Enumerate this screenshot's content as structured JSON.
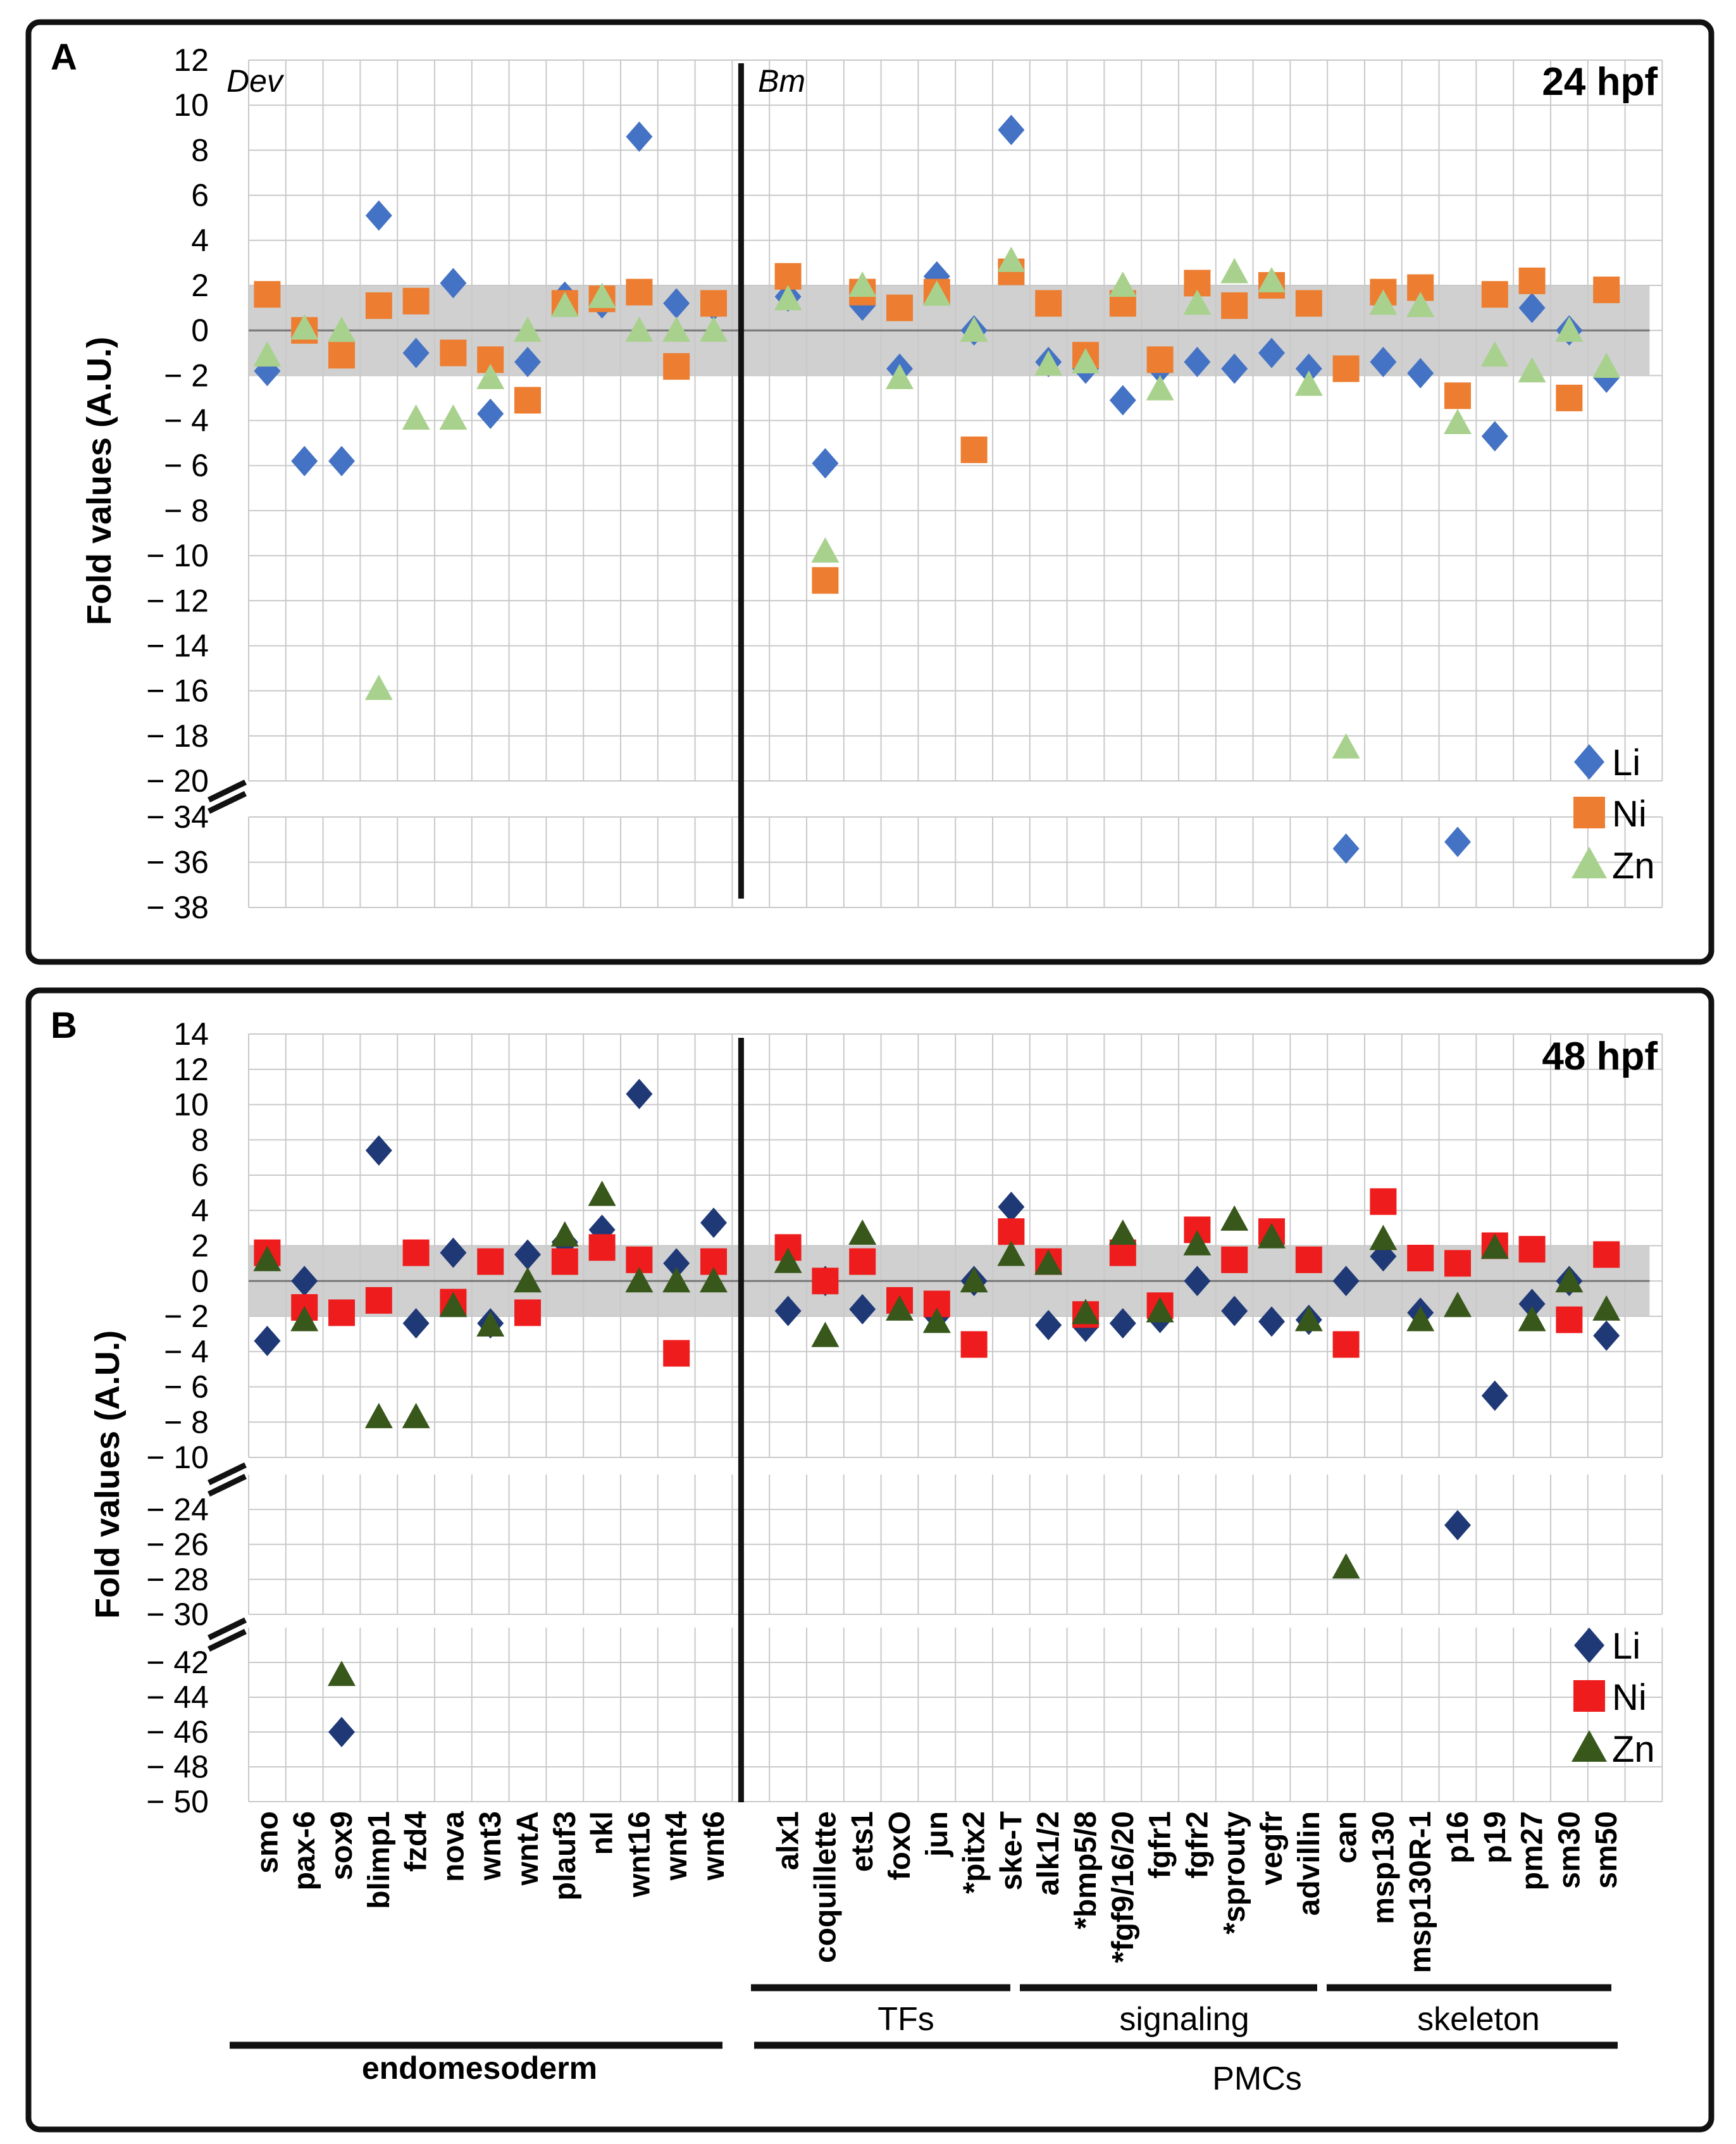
{
  "chart_data": [
    {
      "type": "scatter",
      "panel": "A",
      "title": "24 hpf",
      "ylabel": "Fold values (A.U.)",
      "section_labels": [
        "Dev",
        "Bm"
      ],
      "categories": [
        "smo",
        "pax-6",
        "sox9",
        "blimp1",
        "fzd4",
        "nova",
        "wnt3",
        "wntA",
        "plauf3",
        "nkl",
        "wnt16",
        "wnt4",
        "wnt6",
        "alx1",
        "coquillette",
        "ets1",
        "foxO",
        "jun",
        "*pitx2",
        "ske-T",
        "alk1/2",
        "*bmp5/8",
        "*fgf9/16/20",
        "fgfr1",
        "fgfr2",
        "*sprouty",
        "vegfr",
        "advillin",
        "can",
        "msp130",
        "msp130R-1",
        "p16",
        "p19",
        "pm27",
        "sm30",
        "sm50"
      ],
      "ytick_labels": [
        "12",
        "10",
        "8",
        "6",
        "4",
        "2",
        "0",
        "− 2",
        "− 4",
        "− 6",
        "− 8",
        "− 10",
        "− 12",
        "− 14",
        "− 16",
        "− 18",
        "− 20",
        "− 34",
        "− 36",
        "− 38"
      ],
      "ylim_upper": [
        -20,
        12
      ],
      "ylim_lower": [
        -38,
        -34
      ],
      "threshold_band": [
        -2,
        2
      ],
      "series": [
        {
          "name": "Li",
          "color": "#4472C4",
          "marker": "diamond",
          "values": [
            -1.8,
            -5.8,
            -5.8,
            5.1,
            -1,
            2.1,
            -3.7,
            -1.4,
            1.5,
            1.2,
            8.6,
            1.2,
            1.1,
            1.5,
            -5.9,
            1.1,
            -1.7,
            2.4,
            0,
            8.9,
            -1.4,
            -1.7,
            -3.1,
            -1.7,
            -1.4,
            -1.7,
            -1.0,
            -1.7,
            -35.4,
            -1.4,
            -1.9,
            -35.1,
            -4.7,
            1,
            0,
            -2.1
          ]
        },
        {
          "name": "Ni",
          "color": "#ED7D31",
          "marker": "square",
          "values": [
            1.6,
            0,
            -1.1,
            1.1,
            1.3,
            -1,
            -1.3,
            -3.1,
            1.2,
            1.4,
            1.7,
            -1.6,
            1.2,
            2.4,
            -11.1,
            1.7,
            1,
            1.7,
            -5.3,
            2.6,
            1.2,
            -1.1,
            1.2,
            -1.3,
            2.1,
            1.1,
            2,
            1.2,
            -1.7,
            1.7,
            1.9,
            -2.9,
            1.6,
            2.2,
            -3,
            1.8
          ]
        },
        {
          "name": "Zn",
          "color": "#A9D18E",
          "marker": "triangle",
          "values": [
            -1.1,
            0.1,
            0,
            -15.9,
            -3.9,
            -3.9,
            -2.1,
            0,
            1.1,
            1.5,
            0,
            0,
            0,
            1.4,
            -9.8,
            2,
            -2.1,
            1.6,
            0,
            3.1,
            -1.5,
            -1.4,
            2,
            -2.6,
            1.2,
            2.6,
            2.2,
            -2.4,
            -18.5,
            1.2,
            1.1,
            -4.1,
            -1.1,
            -1.8,
            0,
            -1.6
          ]
        }
      ]
    },
    {
      "type": "scatter",
      "panel": "B",
      "title": "48 hpf",
      "ylabel": "Fold values (A.U.)",
      "categories": [
        "smo",
        "pax-6",
        "sox9",
        "blimp1",
        "fzd4",
        "nova",
        "wnt3",
        "wntA",
        "plauf3",
        "nkl",
        "wnt16",
        "wnt4",
        "wnt6",
        "alx1",
        "coquillette",
        "ets1",
        "foxO",
        "jun",
        "*pitx2",
        "ske-T",
        "alk1/2",
        "*bmp5/8",
        "*fgf9/16/20",
        "fgfr1",
        "fgfr2",
        "*sprouty",
        "vegfr",
        "advillin",
        "can",
        "msp130",
        "msp130R-1",
        "p16",
        "p19",
        "pm27",
        "sm30",
        "sm50"
      ],
      "ytick_labels_upper": [
        "14",
        "12",
        "10",
        "8",
        "6",
        "4",
        "2",
        "0",
        "− 2",
        "− 4",
        "− 6",
        "− 8",
        "− 10"
      ],
      "ytick_labels_middle": [
        "− 24",
        "− 26",
        "− 28",
        "− 30"
      ],
      "ytick_labels_lower": [
        "− 42",
        "− 44",
        "− 46",
        "− 48",
        "− 50"
      ],
      "ylim_upper": [
        -10,
        14
      ],
      "ylim_middle": [
        -30,
        -22
      ],
      "ylim_lower": [
        -50,
        -40
      ],
      "threshold_band": [
        -2,
        2
      ],
      "series": [
        {
          "name": "Li",
          "color": "#1F3876",
          "marker": "diamond",
          "values": [
            -3.4,
            0,
            -46,
            7.4,
            -2.4,
            1.6,
            -2.4,
            1.5,
            2.2,
            2.9,
            10.6,
            1,
            3.3,
            -1.7,
            0,
            -1.6,
            -1.4,
            -2,
            0,
            4.2,
            -2.5,
            -2.6,
            -2.4,
            -2.1,
            0,
            -1.7,
            -2.3,
            -2.2,
            0,
            1.4,
            -1.8,
            -24.9,
            -6.5,
            -1.3,
            0,
            -3.1
          ]
        },
        {
          "name": "Ni",
          "color": "#EE1C1C",
          "marker": "square",
          "values": [
            1.6,
            -1.5,
            -1.8,
            -1.1,
            1.6,
            -1.2,
            1.1,
            -1.8,
            1.1,
            1.9,
            1.2,
            -4.1,
            1.1,
            1.9,
            0,
            1.1,
            -1.1,
            -1.3,
            -3.6,
            2.8,
            1.1,
            -1.9,
            1.6,
            -1.4,
            2.9,
            1.2,
            2.8,
            1.2,
            -3.6,
            4.5,
            1.3,
            1,
            2,
            1.8,
            -2.2,
            1.5
          ]
        },
        {
          "name": "Zn",
          "color": "#38571A",
          "marker": "triangle",
          "values": [
            1.2,
            -2.2,
            -42.7,
            -7.7,
            -7.7,
            -1.4,
            -2.5,
            0,
            2.6,
            4.9,
            0,
            0,
            0,
            1.1,
            -3.1,
            2.7,
            -1.6,
            -2.3,
            0,
            1.5,
            1,
            -1.8,
            2.7,
            -1.7,
            2.1,
            3.5,
            2.5,
            -2.2,
            -27.3,
            2.4,
            -2.2,
            -1.4,
            1.9,
            -2.2,
            0,
            -1.6
          ]
        }
      ],
      "groups": [
        {
          "label": "TFs"
        },
        {
          "label": "signaling"
        },
        {
          "label": "skeleton"
        },
        {
          "label": "endomesoderm"
        },
        {
          "label": "PMCs"
        }
      ]
    }
  ]
}
